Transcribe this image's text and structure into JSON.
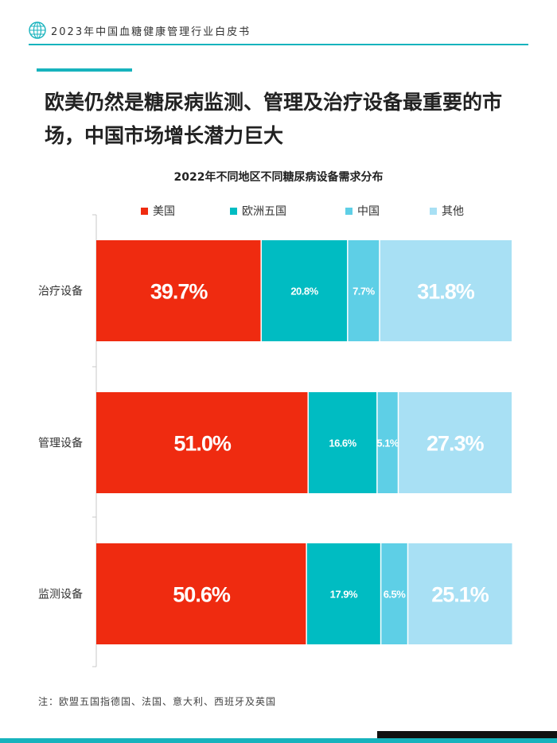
{
  "header": {
    "title": "2023年中国血糖健康管理行业白皮书"
  },
  "headline": "欧美仍然是糖尿病监测、管理及治疗设备最重要的市场，中国市场增长潜力巨大",
  "colors": {
    "accent": "#17b3bd",
    "usa": "#ef2b10",
    "europe5": "#00bcc2",
    "china": "#5ecfe6",
    "other": "#a8e0f4"
  },
  "chart_data": {
    "type": "bar",
    "orientation": "horizontal",
    "stacked": true,
    "title": "2022年不同地区不同糖尿病设备需求分布",
    "categories": [
      "治疗设备",
      "管理设备",
      "监测设备"
    ],
    "series": [
      {
        "name": "美国",
        "color": "#ef2b10",
        "values": [
          39.7,
          51.0,
          50.6
        ],
        "labels": [
          "39.7%",
          "51.0%",
          "50.6%"
        ]
      },
      {
        "name": "欧洲五国",
        "color": "#00bcc2",
        "values": [
          20.8,
          16.6,
          17.9
        ],
        "labels": [
          "20.8%",
          "16.6%",
          "17.9%"
        ]
      },
      {
        "name": "中国",
        "color": "#5ecfe6",
        "values": [
          7.7,
          5.1,
          6.5
        ],
        "labels": [
          "7.7%",
          "5.1%",
          "6.5%"
        ]
      },
      {
        "name": "其他",
        "color": "#a8e0f4",
        "values": [
          31.8,
          27.3,
          25.1
        ],
        "labels": [
          "31.8%",
          "27.3%",
          "25.1%"
        ]
      }
    ],
    "xlim": [
      0,
      100
    ],
    "legend": "top",
    "grid": false
  },
  "note": "注：欧盟五国指德国、法国、意大利、西班牙及英国"
}
